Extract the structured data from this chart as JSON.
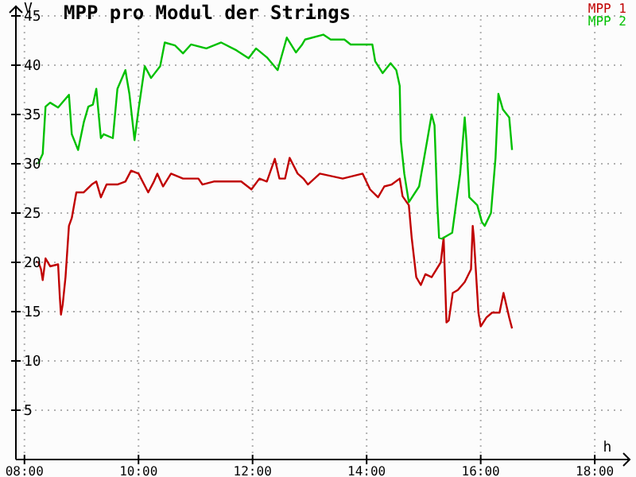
{
  "chart_data": {
    "type": "line",
    "title": "MPP pro Modul der Strings",
    "xlabel": "h",
    "ylabel": "V",
    "xlim": [
      7.85,
      18.5
    ],
    "xticks": [
      {
        "value": 8,
        "label": "08:00"
      },
      {
        "value": 10,
        "label": "10:00"
      },
      {
        "value": 12,
        "label": "12:00"
      },
      {
        "value": 14,
        "label": "14:00"
      },
      {
        "value": 16,
        "label": "16:00"
      },
      {
        "value": 18,
        "label": "18:00"
      }
    ],
    "ylim": [
      0,
      45
    ],
    "yticks": [
      5,
      10,
      15,
      20,
      25,
      30,
      35,
      40,
      45
    ],
    "grid": true,
    "legend": "top right",
    "marker": "none",
    "line_style": "solid",
    "series": [
      {
        "name": "MPP 1",
        "color": "#c00000",
        "x": [
          8.24,
          8.29,
          8.32,
          8.37,
          8.45,
          8.59,
          8.62,
          8.64,
          8.67,
          8.72,
          8.78,
          8.83,
          8.91,
          9.04,
          9.18,
          9.26,
          9.34,
          9.44,
          9.63,
          9.77,
          9.87,
          10.0,
          10.17,
          10.27,
          10.33,
          10.43,
          10.57,
          10.78,
          11.05,
          11.12,
          11.32,
          11.58,
          11.8,
          11.98,
          12.12,
          12.25,
          12.39,
          12.47,
          12.57,
          12.65,
          12.79,
          12.89,
          12.97,
          13.18,
          13.58,
          13.93,
          14.06,
          14.2,
          14.31,
          14.44,
          14.58,
          14.63,
          14.74,
          14.79,
          14.87,
          14.95,
          15.03,
          15.14,
          15.3,
          15.35,
          15.4,
          15.44,
          15.51,
          15.6,
          15.72,
          15.83,
          15.86,
          15.88,
          15.96,
          16.0,
          16.1,
          16.2,
          16.33,
          16.4,
          16.5,
          16.55
        ],
        "values": [
          20.1,
          19.3,
          18.2,
          20.4,
          19.6,
          19.8,
          16.5,
          14.7,
          15.7,
          18.5,
          23.7,
          24.5,
          27.1,
          27.1,
          27.9,
          28.2,
          26.6,
          27.9,
          27.9,
          28.2,
          29.3,
          29,
          27.1,
          28.2,
          29,
          27.7,
          29,
          28.5,
          28.5,
          27.9,
          28.2,
          28.2,
          28.2,
          27.4,
          28.5,
          28.2,
          30.5,
          28.5,
          28.5,
          30.6,
          29,
          28.5,
          27.9,
          29,
          28.5,
          29,
          27.4,
          26.6,
          27.7,
          27.9,
          28.5,
          26.7,
          25.8,
          22.5,
          18.5,
          17.7,
          18.8,
          18.5,
          20,
          22.5,
          13.9,
          14.1,
          16.9,
          17.2,
          18,
          19.3,
          23.7,
          22.5,
          14.9,
          13.5,
          14.4,
          14.9,
          14.9,
          16.9,
          14.4,
          13.3
        ]
      },
      {
        "name": "MPP 2",
        "color": "#00c000",
        "x": [
          8.24,
          8.32,
          8.37,
          8.45,
          8.59,
          8.78,
          8.83,
          8.94,
          9.04,
          9.12,
          9.2,
          9.26,
          9.34,
          9.39,
          9.55,
          9.63,
          9.77,
          9.84,
          9.93,
          10.0,
          10.11,
          10.22,
          10.38,
          10.46,
          10.64,
          10.78,
          10.92,
          11.19,
          11.45,
          11.72,
          11.93,
          12.06,
          12.25,
          12.44,
          12.6,
          12.76,
          12.87,
          12.92,
          13.24,
          13.37,
          13.61,
          13.72,
          14.1,
          14.15,
          14.28,
          14.42,
          14.52,
          14.58,
          14.6,
          14.66,
          14.74,
          14.92,
          15.06,
          15.14,
          15.19,
          15.24,
          15.27,
          15.32,
          15.5,
          15.64,
          15.72,
          15.75,
          15.8,
          15.94,
          16.02,
          16.07,
          16.18,
          16.26,
          16.31,
          16.39,
          16.5,
          16.55
        ],
        "values": [
          30,
          31,
          35.8,
          36.2,
          35.7,
          37,
          33,
          31.4,
          34.2,
          35.8,
          36,
          37.6,
          32.6,
          33,
          32.6,
          37.6,
          39.5,
          37.1,
          32.4,
          35.5,
          39.9,
          38.7,
          39.9,
          42.3,
          42,
          41.2,
          42.1,
          41.7,
          42.3,
          41.5,
          40.7,
          41.7,
          40.8,
          39.5,
          42.8,
          41.3,
          42.1,
          42.6,
          43.1,
          42.6,
          42.6,
          42.1,
          42.1,
          40.4,
          39.2,
          40.2,
          39.5,
          37.9,
          32.3,
          29,
          26.1,
          27.7,
          32.3,
          35,
          33.9,
          25.8,
          22.5,
          22.4,
          23,
          29,
          34.7,
          32.3,
          26.6,
          25.8,
          24.1,
          23.7,
          25,
          30.6,
          37.1,
          35.5,
          34.7,
          31.4
        ]
      }
    ]
  }
}
